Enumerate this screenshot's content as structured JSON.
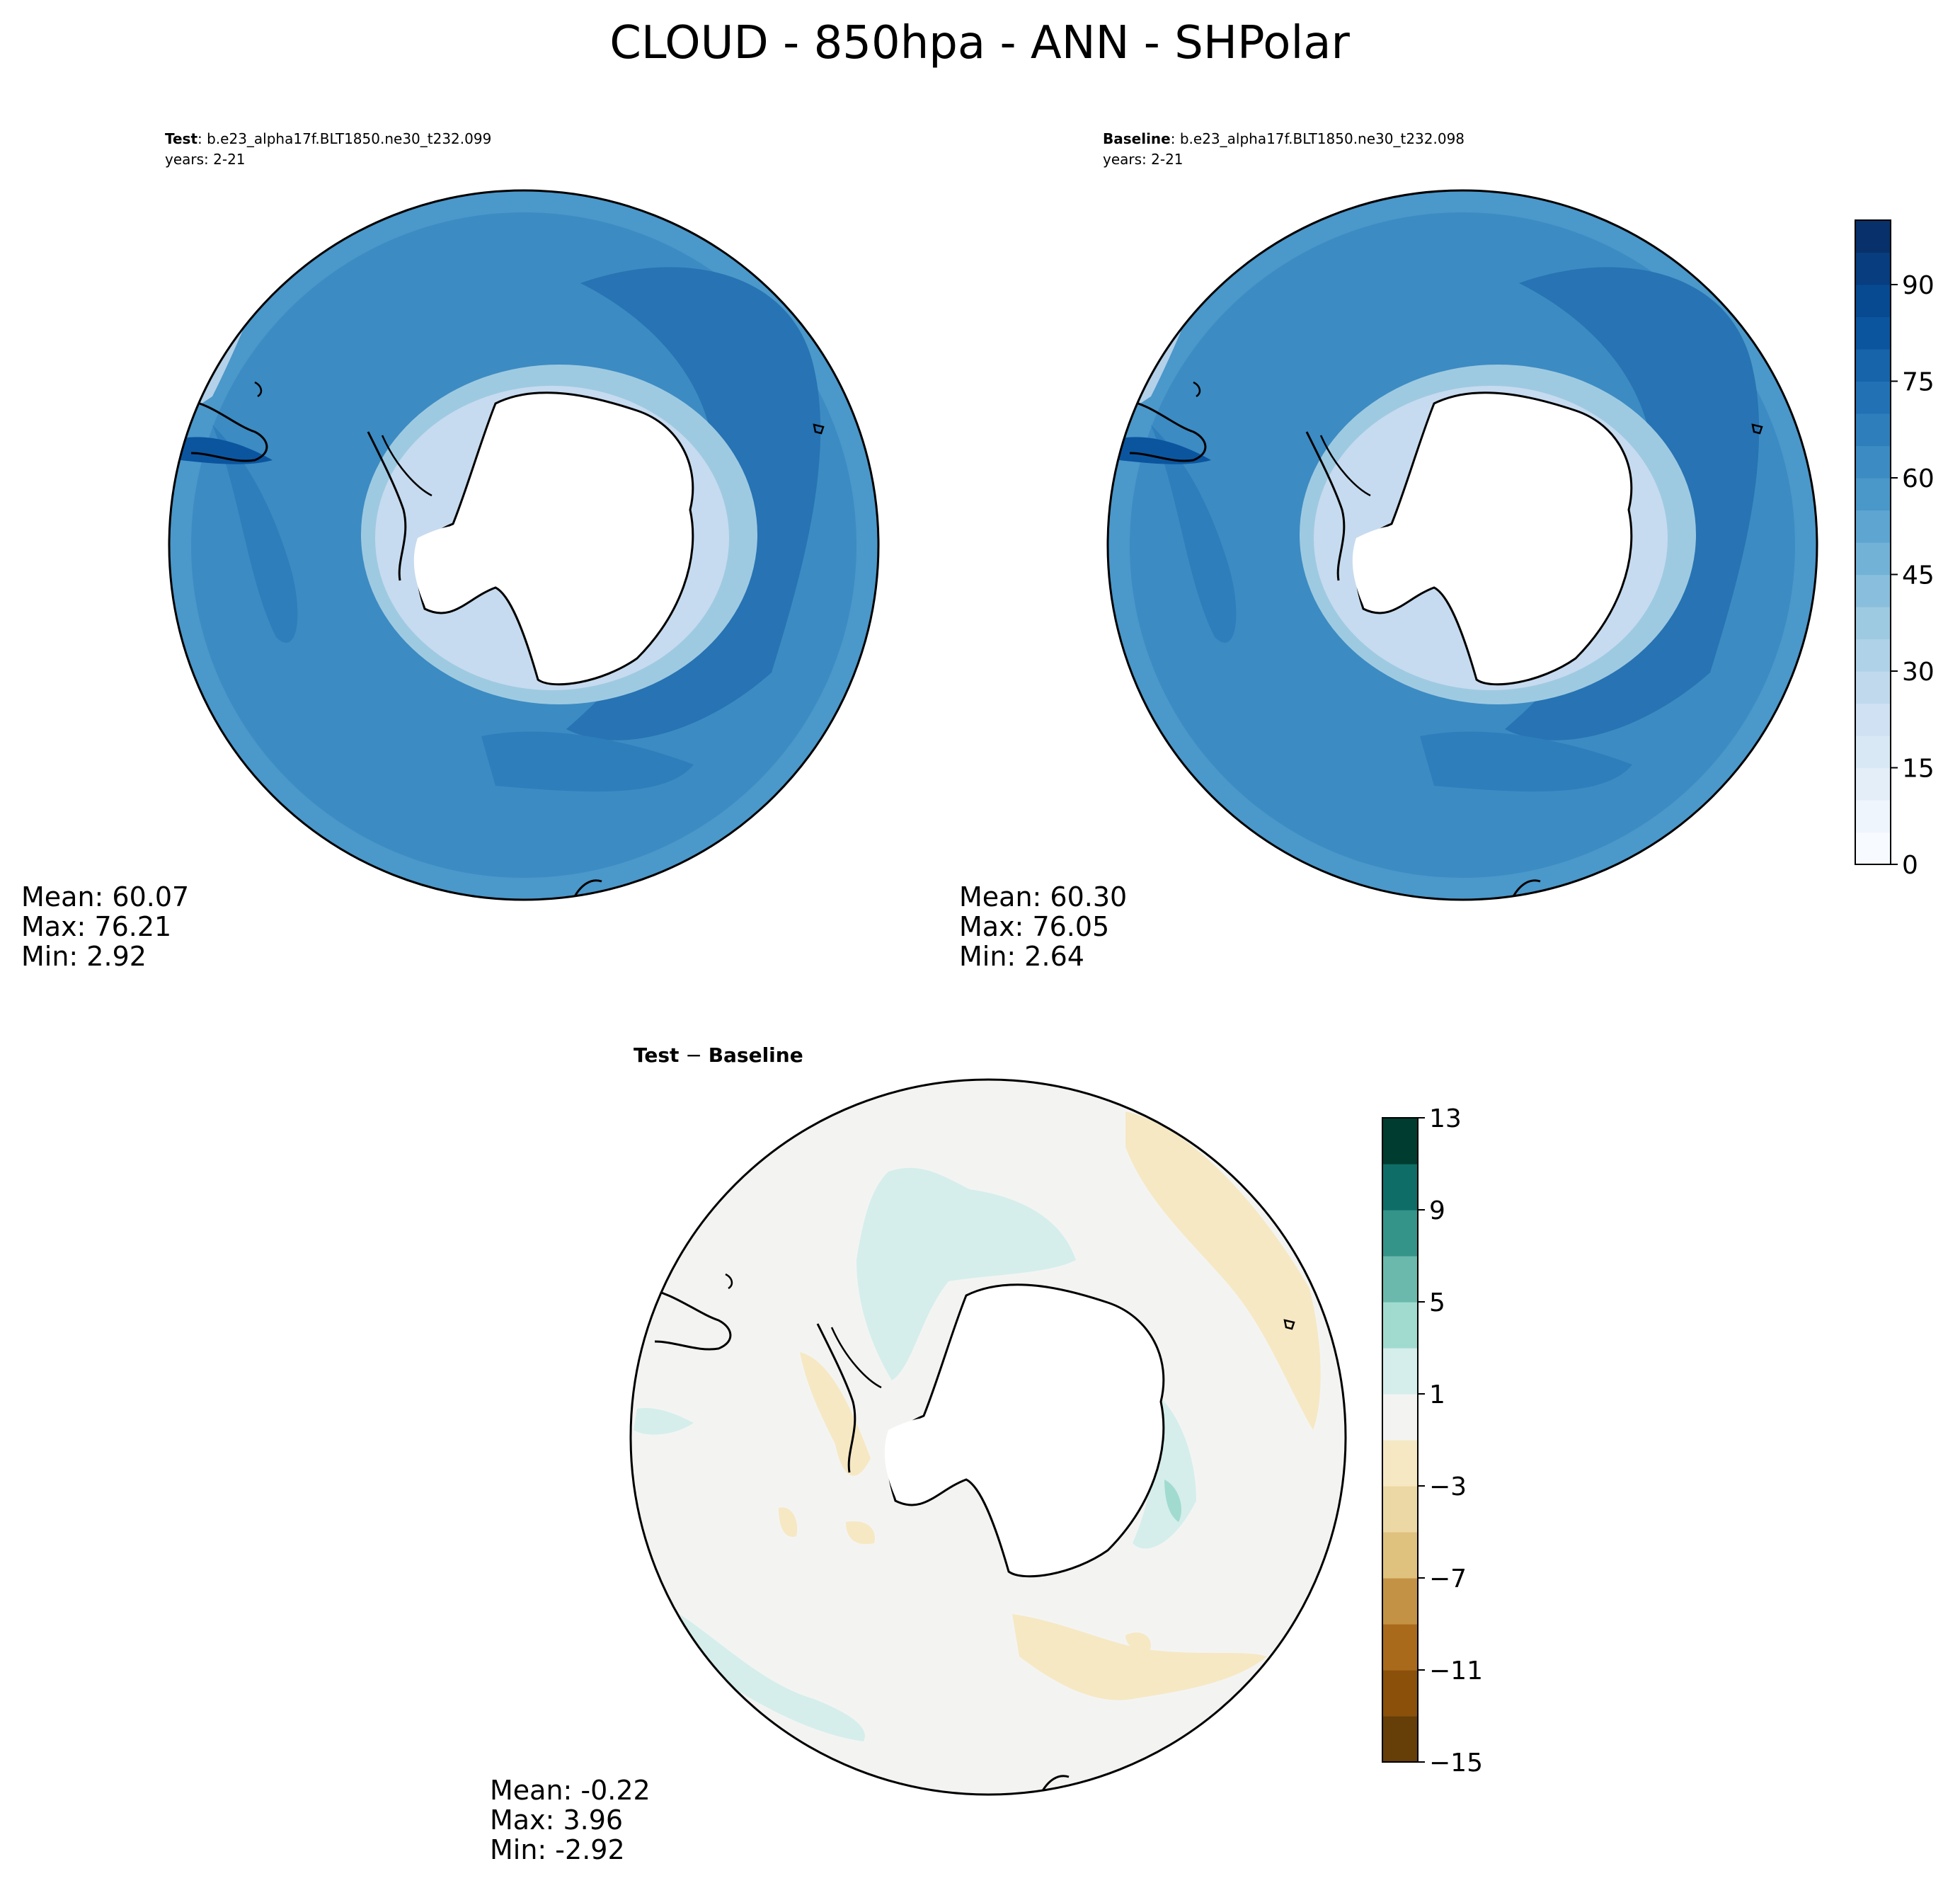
{
  "title": "CLOUD - 850hpa - ANN - SHPolar",
  "panels": {
    "test": {
      "label": "Test",
      "case": ": b.e23_alpha17f.BLT1850.ne30_t232.099",
      "years": "years: 2-21",
      "stats": {
        "mean": "Mean: 60.07",
        "max": "Max: 76.21",
        "min": "Min:  2.92"
      }
    },
    "baseline": {
      "label": "Baseline",
      "case": ": b.e23_alpha17f.BLT1850.ne30_t232.098",
      "years": "years: 2-21",
      "stats": {
        "mean": "Mean: 60.30",
        "max": "Max: 76.05",
        "min": "Min:  2.64"
      }
    },
    "diff": {
      "label_a": "Test",
      "label_sep": " − ",
      "label_b": "Baseline",
      "stats": {
        "mean": "Mean: -0.22",
        "max": "Max:  3.96",
        "min": "Min: -2.92"
      }
    }
  },
  "colorbars": {
    "main": {
      "ticks": [
        "0",
        "15",
        "30",
        "45",
        "60",
        "75",
        "90"
      ],
      "tick_values": [
        0,
        15,
        30,
        45,
        60,
        75,
        90
      ],
      "min": 0,
      "max": 100,
      "colors": [
        "#f7fbff",
        "#eef5fc",
        "#e3eef9",
        "#d9e8f5",
        "#cfe1f2",
        "#c0d9ed",
        "#b0d2e8",
        "#9ecae1",
        "#89bedc",
        "#72b2d7",
        "#5ea5d1",
        "#4a98c9",
        "#3c8bc3",
        "#2f7ebc",
        "#2271b5",
        "#1764ab",
        "#0b559f",
        "#084a91",
        "#083d7f",
        "#08306b"
      ]
    },
    "diff": {
      "ticks": [
        "13",
        "9",
        "5",
        "1",
        "−3",
        "−7",
        "−11",
        "−15"
      ],
      "tick_values": [
        13,
        9,
        5,
        1,
        -3,
        -7,
        -11,
        -15
      ],
      "min": -15,
      "max": 13,
      "colors": [
        "#653e08",
        "#8b510a",
        "#aa6a1c",
        "#c49244",
        "#dfc27d",
        "#ecd8a4",
        "#f6e8c3",
        "#f3f4f2",
        "#d5eeeb",
        "#a1dbd0",
        "#6ab9ac",
        "#34948a",
        "#0e6e67",
        "#003c30"
      ]
    }
  },
  "stats_values": {
    "test": {
      "mean": 60.07,
      "max": 76.21,
      "min": 2.92
    },
    "baseline": {
      "mean": 60.3,
      "max": 76.05,
      "min": 2.64
    },
    "diff": {
      "mean": -0.22,
      "max": 3.96,
      "min": -2.92
    }
  },
  "colors": {
    "ocean_mid": "#3d88c2",
    "ocean_high": "#2773b3",
    "diff_neutral": "#f3f4f2",
    "diff_pos": "#d5eeeb",
    "diff_neg": "#f6e8c3",
    "coast": "#000000",
    "land": "#ffffff"
  }
}
